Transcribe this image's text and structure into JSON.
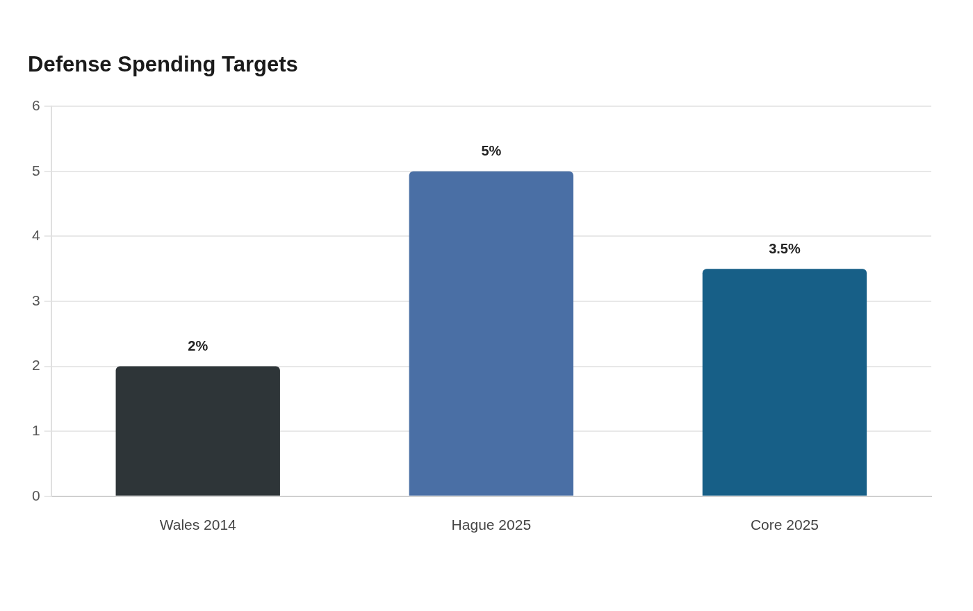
{
  "chart_data": {
    "type": "bar",
    "title": "Defense Spending Targets",
    "categories": [
      "Wales 2014",
      "Hague 2025",
      "Core 2025"
    ],
    "values": [
      2,
      5,
      3.5
    ],
    "colors": [
      "#2e3538",
      "#4a6fa5",
      "#175f87"
    ],
    "value_labels": [
      "2%",
      "5%",
      "3.5%"
    ],
    "ylim": [
      0,
      6
    ],
    "yticks": [
      0,
      1,
      2,
      3,
      4,
      5,
      6
    ],
    "grid": "y"
  }
}
